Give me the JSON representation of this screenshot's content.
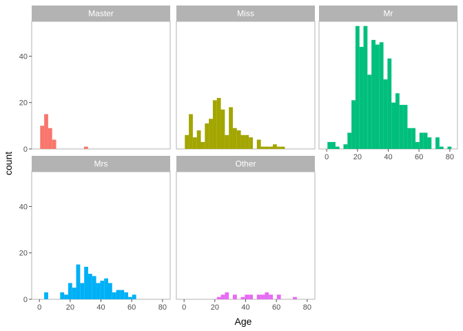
{
  "chart_data": {
    "type": "bar",
    "subtype": "faceted-histogram",
    "xlabel": "Age",
    "ylabel": "count",
    "xlim": [
      -5,
      85
    ],
    "ylim": [
      0,
      55
    ],
    "x_ticks": [
      0,
      20,
      40,
      60,
      80
    ],
    "y_ticks": [
      0,
      20,
      40
    ],
    "bin_width": 2.6,
    "grid": false,
    "layout": "3 columns x 2 rows, shared axes",
    "facets": [
      {
        "name": "Master",
        "color": "#F8766D",
        "bins": [
          {
            "x": 0.5,
            "count": 10
          },
          {
            "x": 3.1,
            "count": 15
          },
          {
            "x": 5.7,
            "count": 9
          },
          {
            "x": 8.3,
            "count": 4
          },
          {
            "x": 29.0,
            "count": 1
          }
        ]
      },
      {
        "name": "Miss",
        "color": "#A3A500",
        "bins": [
          {
            "x": 0.5,
            "count": 6
          },
          {
            "x": 3.1,
            "count": 15
          },
          {
            "x": 5.7,
            "count": 5
          },
          {
            "x": 8.3,
            "count": 8
          },
          {
            "x": 10.9,
            "count": 3
          },
          {
            "x": 13.5,
            "count": 11
          },
          {
            "x": 16.1,
            "count": 13
          },
          {
            "x": 18.7,
            "count": 21
          },
          {
            "x": 21.3,
            "count": 22
          },
          {
            "x": 23.9,
            "count": 17
          },
          {
            "x": 26.5,
            "count": 6
          },
          {
            "x": 29.1,
            "count": 18
          },
          {
            "x": 31.7,
            "count": 9
          },
          {
            "x": 34.3,
            "count": 8
          },
          {
            "x": 36.9,
            "count": 6
          },
          {
            "x": 39.5,
            "count": 6
          },
          {
            "x": 42.1,
            "count": 5
          },
          {
            "x": 47.3,
            "count": 4
          },
          {
            "x": 49.9,
            "count": 1
          },
          {
            "x": 52.5,
            "count": 1
          },
          {
            "x": 55.1,
            "count": 1
          },
          {
            "x": 57.7,
            "count": 2
          },
          {
            "x": 60.3,
            "count": 1
          },
          {
            "x": 62.9,
            "count": 1
          }
        ]
      },
      {
        "name": "Mr",
        "color": "#00BF7D",
        "bins": [
          {
            "x": 0.5,
            "count": 3
          },
          {
            "x": 3.1,
            "count": 3
          },
          {
            "x": 5.7,
            "count": 1
          },
          {
            "x": 10.9,
            "count": 2
          },
          {
            "x": 13.5,
            "count": 7
          },
          {
            "x": 16.1,
            "count": 21
          },
          {
            "x": 18.7,
            "count": 53
          },
          {
            "x": 21.3,
            "count": 44
          },
          {
            "x": 23.9,
            "count": 53
          },
          {
            "x": 26.5,
            "count": 32
          },
          {
            "x": 29.1,
            "count": 47
          },
          {
            "x": 31.7,
            "count": 45
          },
          {
            "x": 34.3,
            "count": 46
          },
          {
            "x": 36.9,
            "count": 30
          },
          {
            "x": 39.5,
            "count": 39
          },
          {
            "x": 42.1,
            "count": 20
          },
          {
            "x": 44.7,
            "count": 24
          },
          {
            "x": 47.3,
            "count": 19
          },
          {
            "x": 49.9,
            "count": 19
          },
          {
            "x": 52.5,
            "count": 9
          },
          {
            "x": 55.1,
            "count": 9
          },
          {
            "x": 57.7,
            "count": 3
          },
          {
            "x": 60.3,
            "count": 7
          },
          {
            "x": 62.9,
            "count": 7
          },
          {
            "x": 65.5,
            "count": 5
          },
          {
            "x": 70.7,
            "count": 5
          },
          {
            "x": 73.3,
            "count": 1
          },
          {
            "x": 78.5,
            "count": 1
          }
        ]
      },
      {
        "name": "Mrs",
        "color": "#00B0F6",
        "bins": [
          {
            "x": 3.1,
            "count": 3
          },
          {
            "x": 13.5,
            "count": 3
          },
          {
            "x": 16.1,
            "count": 2
          },
          {
            "x": 18.7,
            "count": 7
          },
          {
            "x": 21.3,
            "count": 5
          },
          {
            "x": 23.9,
            "count": 15
          },
          {
            "x": 26.5,
            "count": 7
          },
          {
            "x": 29.1,
            "count": 14
          },
          {
            "x": 31.7,
            "count": 11
          },
          {
            "x": 34.3,
            "count": 10
          },
          {
            "x": 36.9,
            "count": 7
          },
          {
            "x": 39.5,
            "count": 8
          },
          {
            "x": 42.1,
            "count": 9
          },
          {
            "x": 44.7,
            "count": 7
          },
          {
            "x": 47.3,
            "count": 3
          },
          {
            "x": 49.9,
            "count": 4
          },
          {
            "x": 52.5,
            "count": 4
          },
          {
            "x": 55.1,
            "count": 3
          },
          {
            "x": 57.7,
            "count": 1
          },
          {
            "x": 60.3,
            "count": 2
          }
        ]
      },
      {
        "name": "Other",
        "color": "#E76BF3",
        "bins": [
          {
            "x": 21.3,
            "count": 1
          },
          {
            "x": 23.9,
            "count": 2
          },
          {
            "x": 26.5,
            "count": 3
          },
          {
            "x": 31.7,
            "count": 2
          },
          {
            "x": 36.9,
            "count": 1
          },
          {
            "x": 39.5,
            "count": 2
          },
          {
            "x": 42.1,
            "count": 2
          },
          {
            "x": 47.3,
            "count": 2
          },
          {
            "x": 49.9,
            "count": 2
          },
          {
            "x": 52.5,
            "count": 3
          },
          {
            "x": 55.1,
            "count": 2
          },
          {
            "x": 60.3,
            "count": 2
          },
          {
            "x": 70.7,
            "count": 1
          }
        ]
      }
    ]
  },
  "theme": {
    "strip_fill": "#B3B3B3",
    "panel_border": "#B3B3B3",
    "tick_color": "#4D4D4D",
    "background": "#FFFFFF"
  }
}
